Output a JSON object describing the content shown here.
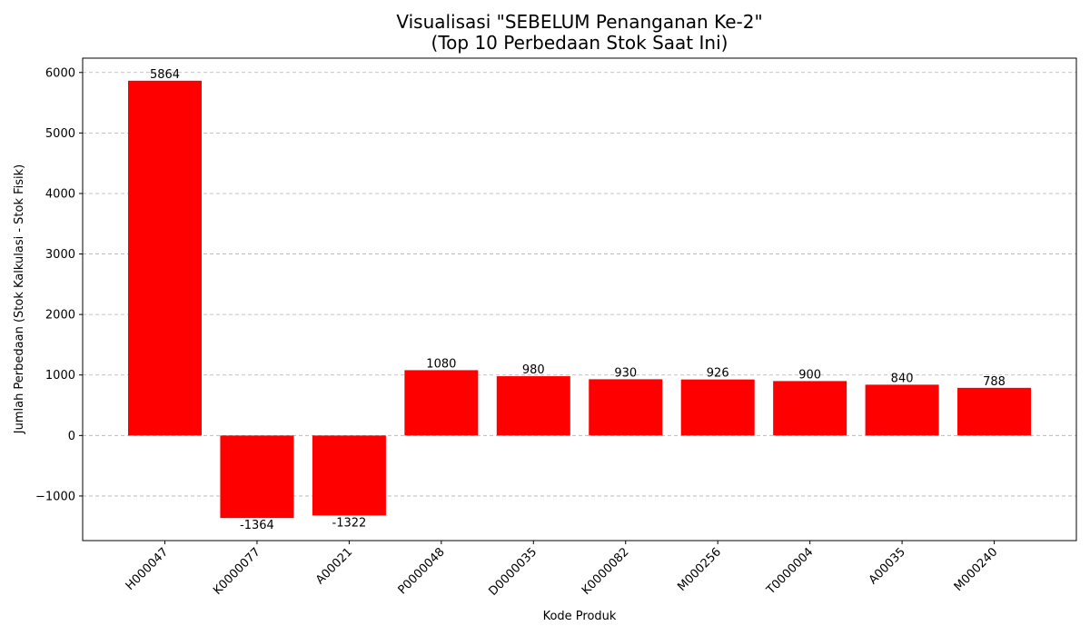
{
  "chart_data": {
    "type": "bar",
    "title_line1": "Visualisasi \"SEBELUM Penanganan Ke-2\"",
    "title_line2": "(Top 10 Perbedaan Stok Saat Ini)",
    "xlabel": "Kode Produk",
    "ylabel": "Jumlah Perbedaan (Stok Kalkulasi - Stok Fisik)",
    "categories": [
      "H000047",
      "K0000077",
      "A00021",
      "P0000048",
      "D0000035",
      "K0000082",
      "M000256",
      "T0000004",
      "A00035",
      "M000240"
    ],
    "values": [
      5864,
      -1364,
      -1322,
      1080,
      980,
      930,
      926,
      900,
      840,
      788
    ],
    "ylim": [
      -1737,
      6237
    ],
    "yticks": [
      -1000,
      0,
      1000,
      2000,
      3000,
      4000,
      5000,
      6000
    ],
    "ytick_labels": [
      "−1000",
      "0",
      "1000",
      "2000",
      "3000",
      "4000",
      "5000",
      "6000"
    ],
    "bar_color": "#ff0000",
    "grid": "y-dashed",
    "legend": "none"
  }
}
